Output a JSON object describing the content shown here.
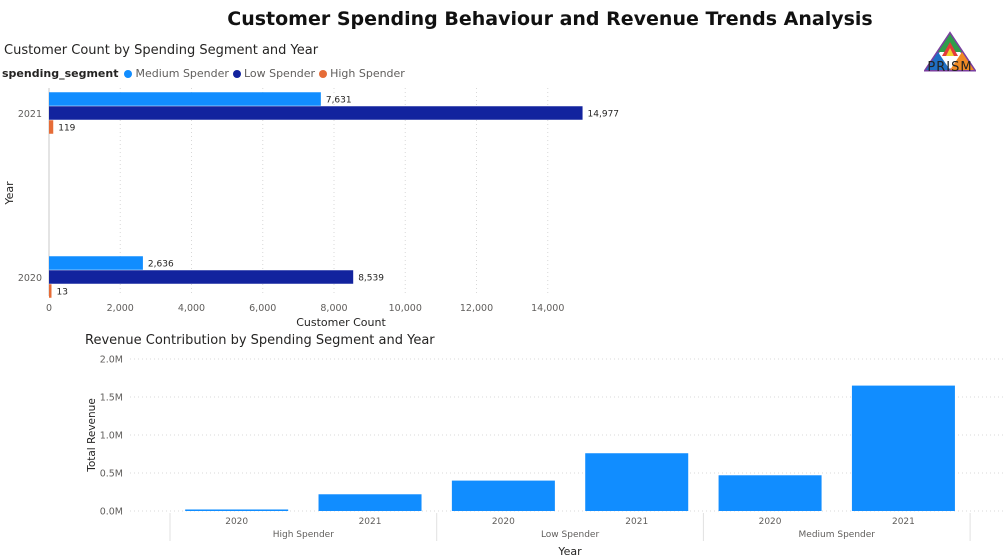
{
  "page": {
    "title": "Customer Spending Behaviour and Revenue Trends Analysis"
  },
  "logo": {
    "text": "PRISM"
  },
  "chart_data": [
    {
      "type": "bar",
      "orientation": "horizontal",
      "title": "Customer Count by Spending Segment and Year",
      "legend_title": "spending_segment",
      "legend_position": "top-left",
      "categories": [
        "2021",
        "2020"
      ],
      "series": [
        {
          "name": "Medium Spender",
          "color": "#118DFF",
          "values": [
            7631,
            2636
          ],
          "labels": [
            "7,631",
            "2,636"
          ]
        },
        {
          "name": "Low Spender",
          "color": "#12239E",
          "values": [
            14977,
            8539
          ],
          "labels": [
            "14,977",
            "8,539"
          ]
        },
        {
          "name": "High Spender",
          "color": "#E66C37",
          "values": [
            119,
            13
          ],
          "labels": [
            "119",
            "13"
          ]
        }
      ],
      "xlabel": "Customer Count",
      "ylabel": "Year",
      "xlim": [
        0,
        16000
      ],
      "xticks": [
        0,
        2000,
        4000,
        6000,
        8000,
        10000,
        12000,
        14000
      ],
      "xtick_labels": [
        "0",
        "2,000",
        "4,000",
        "6,000",
        "8,000",
        "10,000",
        "12,000",
        "14,000"
      ],
      "grid": true
    },
    {
      "type": "bar",
      "title": "Revenue Contribution by Spending Segment and Year",
      "color": "#118DFF",
      "groups": [
        {
          "name": "High Spender",
          "years": [
            "2020",
            "2021"
          ],
          "values": [
            20000,
            220000
          ]
        },
        {
          "name": "Low Spender",
          "years": [
            "2020",
            "2021"
          ],
          "values": [
            400000,
            760000
          ]
        },
        {
          "name": "Medium Spender",
          "years": [
            "2020",
            "2021"
          ],
          "values": [
            470000,
            1650000
          ]
        }
      ],
      "xlabel": "Year",
      "ylabel": "Total Revenue",
      "ylim": [
        0,
        2000000
      ],
      "yticks": [
        0,
        500000,
        1000000,
        1500000,
        2000000
      ],
      "ytick_labels": [
        "0.0M",
        "0.5M",
        "1.0M",
        "1.5M",
        "2.0M"
      ],
      "grid": true
    }
  ]
}
